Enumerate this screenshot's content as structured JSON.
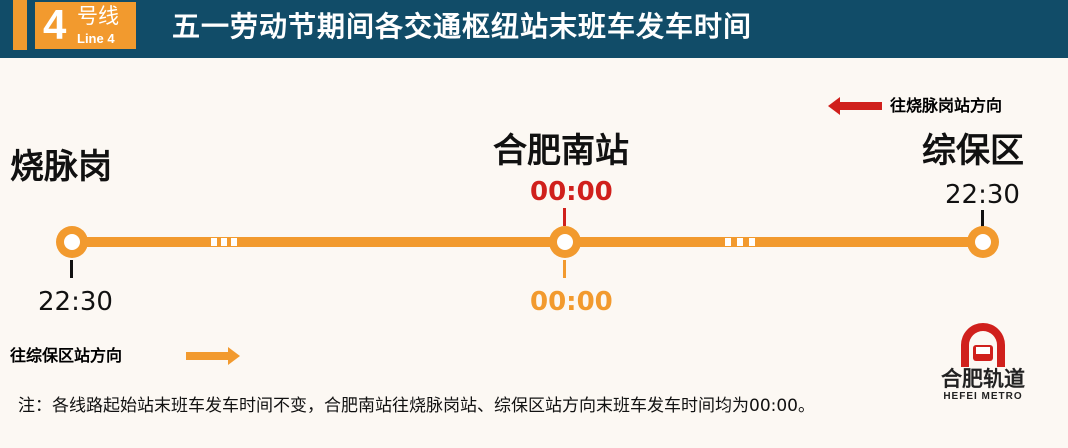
{
  "header": {
    "line_number": "4",
    "line_zh": "号线",
    "line_en": "Line 4",
    "title": "五一劳动节期间各交通枢纽站末班车发车时间"
  },
  "stations": [
    {
      "name": "烧脉岗",
      "time": "22:30"
    },
    {
      "name": "合肥南站",
      "time_to_shaomaigang": "00:00",
      "time_to_zongbaoqu": "00:00"
    },
    {
      "name": "综保区",
      "time": "22:30"
    }
  ],
  "directions": {
    "left": "往烧脉岗站方向",
    "right": "往综保区站方向"
  },
  "note": "注：各线路起始站末班车发车时间不变，合肥南站往烧脉岗站、综保区站方向末班车发车时间均为00:00。",
  "logo": {
    "zh": "合肥轨道",
    "en": "HEFEI METRO"
  },
  "colors": {
    "header": "#114c68",
    "line": "#f29a2e",
    "accent_red": "#d0201c"
  }
}
